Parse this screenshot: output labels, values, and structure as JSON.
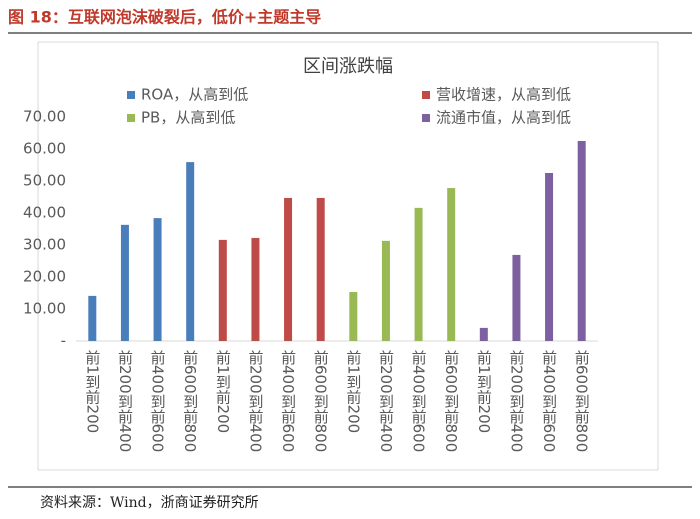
{
  "header": {
    "title": "图 18：互联网泡沫破裂后，低价+主题主导"
  },
  "chart_data": {
    "type": "bar",
    "title": "区间涨跌幅",
    "categories": [
      "前1到前200",
      "前200到前400",
      "前400到前600",
      "前600到前800",
      "前1到前200",
      "前200到前400",
      "前400到前600",
      "前600到前800",
      "前1到前200",
      "前200到前400",
      "前400到前600",
      "前600到前800",
      "前1到前200",
      "前200到前400",
      "前400到前600",
      "前600到前800"
    ],
    "series": [
      {
        "name": "ROA，从高到低",
        "color": "#4a7ebb",
        "values": [
          14.1,
          36.3,
          38.4,
          55.9,
          null,
          null,
          null,
          null,
          null,
          null,
          null,
          null,
          null,
          null,
          null,
          null
        ]
      },
      {
        "name": "营收增速，从高到低",
        "color": "#be4b48",
        "values": [
          null,
          null,
          null,
          null,
          31.6,
          32.2,
          44.7,
          44.7,
          null,
          null,
          null,
          null,
          null,
          null,
          null,
          null
        ]
      },
      {
        "name": "PB，从高到低",
        "color": "#98b954",
        "values": [
          null,
          null,
          null,
          null,
          null,
          null,
          null,
          null,
          15.3,
          31.3,
          41.6,
          47.8,
          null,
          null,
          null,
          null
        ]
      },
      {
        "name": "流通市值，从高到低",
        "color": "#7d60a0",
        "values": [
          null,
          null,
          null,
          null,
          null,
          null,
          null,
          null,
          null,
          null,
          null,
          null,
          4.1,
          26.9,
          52.5,
          62.5
        ]
      }
    ],
    "ylim": [
      0,
      70
    ],
    "yticks": [
      {
        "value": 0,
        "label": "-"
      },
      {
        "value": 10,
        "label": "10.00"
      },
      {
        "value": 20,
        "label": "20.00"
      },
      {
        "value": 30,
        "label": "30.00"
      },
      {
        "value": 40,
        "label": "40.00"
      },
      {
        "value": 50,
        "label": "50.00"
      },
      {
        "value": 60,
        "label": "60.00"
      },
      {
        "value": 70,
        "label": "70.00"
      }
    ]
  },
  "footer": {
    "source": "资料来源：Wind，浙商证券研究所"
  }
}
